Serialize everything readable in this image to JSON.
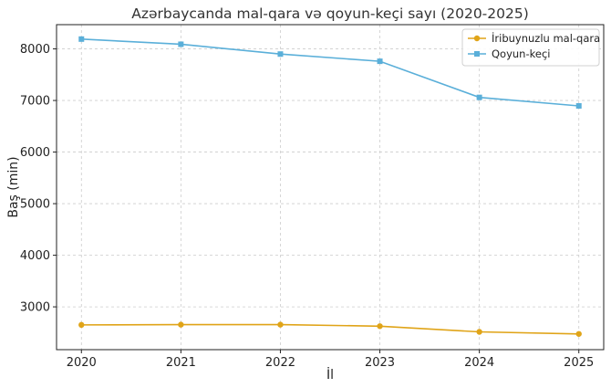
{
  "chart_data": {
    "type": "line",
    "title": "Azərbaycanda mal-qara və qoyun-keçi sayı (2020-2025)",
    "xlabel": "İl",
    "ylabel": "Baş (min)",
    "categories": [
      "2020",
      "2021",
      "2022",
      "2023",
      "2024",
      "2025"
    ],
    "x": [
      2020,
      2021,
      2022,
      2023,
      2024,
      2025
    ],
    "xlim": [
      2019.75,
      2025.25
    ],
    "ylim": [
      2170,
      8470
    ],
    "yticks": [
      3000,
      4000,
      5000,
      6000,
      7000,
      8000
    ],
    "grid": true,
    "legend_position": "top-right",
    "series": [
      {
        "name": "İribuynuzlu mal-qara",
        "color": "#e0a418",
        "marker": "circle",
        "values": [
          2650,
          2655,
          2655,
          2625,
          2515,
          2475
        ]
      },
      {
        "name": "Qoyun-keçi",
        "color": "#5aafd9",
        "marker": "square",
        "values": [
          8190,
          8090,
          7900,
          7760,
          7060,
          6895
        ]
      }
    ]
  }
}
